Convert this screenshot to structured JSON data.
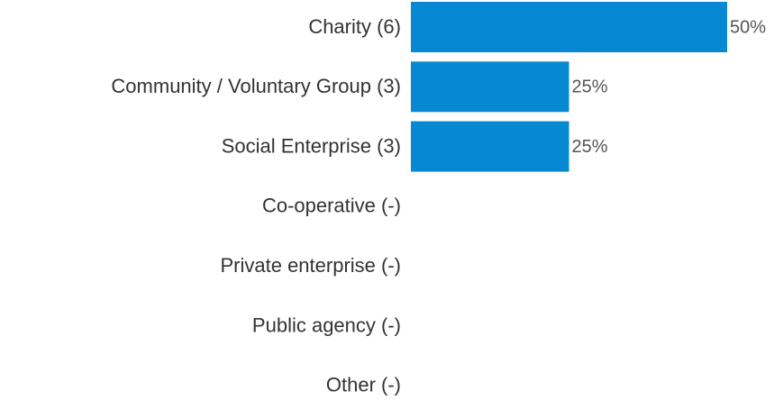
{
  "chart_data": {
    "type": "bar",
    "orientation": "horizontal",
    "categories": [
      "Charity (6)",
      "Community / Voluntary Group (3)",
      "Social Enterprise (3)",
      "Co-operative (-)",
      "Private enterprise (-)",
      "Public agency (-)",
      "Other (-)"
    ],
    "values": [
      50,
      25,
      25,
      null,
      null,
      null,
      null
    ],
    "value_labels": [
      "50%",
      "25%",
      "25%",
      null,
      null,
      null,
      null
    ],
    "color": "#0788d3"
  }
}
